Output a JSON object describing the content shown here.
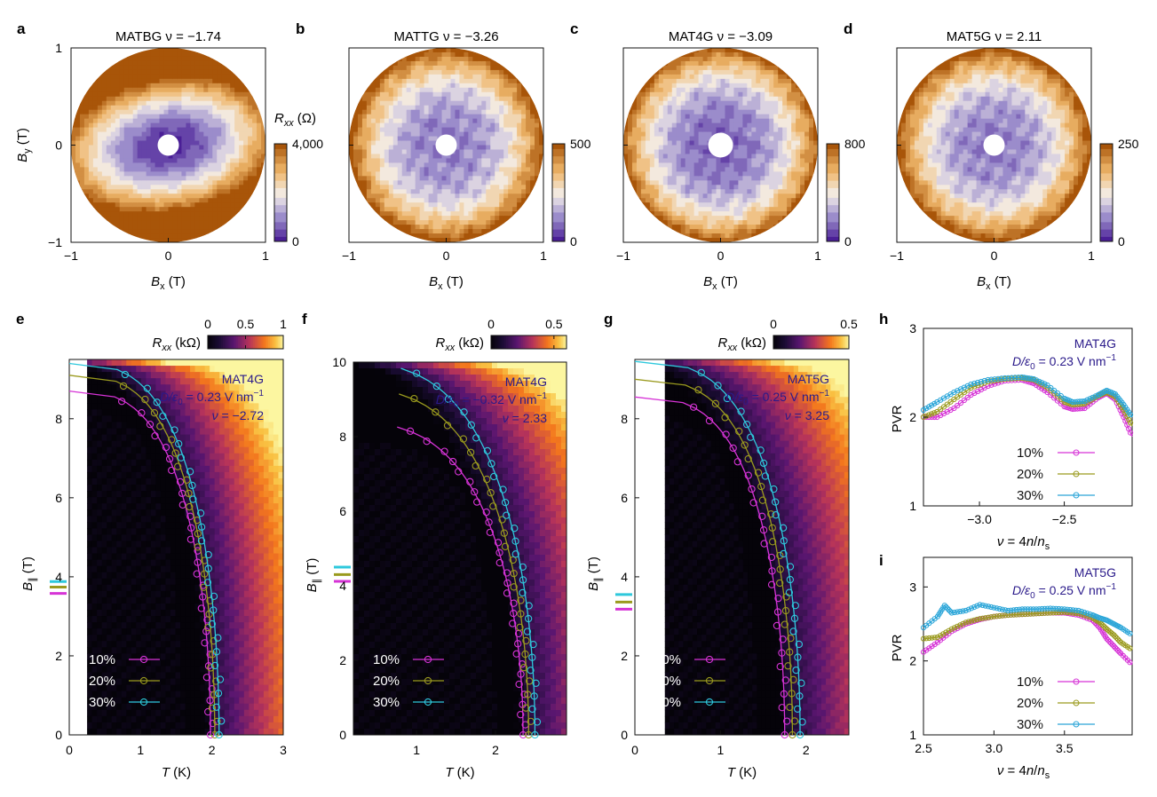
{
  "chart_data": [
    {
      "panel": "a",
      "type": "heatmap",
      "title": "MATBG ν = −1.74",
      "xlabel": "B_x (T)",
      "ylabel": "B_y (T)",
      "xlim": [
        -1,
        1
      ],
      "ylim": [
        -1,
        1
      ],
      "xticks": [
        "−1",
        "0",
        "1"
      ],
      "yticks": [
        "−1",
        "0",
        "1"
      ],
      "colorbar": {
        "label": "R_xx (Ω)",
        "min": 0,
        "max": 4000,
        "tick_labels": [
          "0",
          "4,000"
        ]
      },
      "pattern": "anisotropic",
      "colors": {
        "low": "#4a1f96",
        "mid": "#f3eee9",
        "high": "#b05d0e"
      }
    },
    {
      "panel": "b",
      "type": "heatmap",
      "title": "MATTG ν = −3.26",
      "xlabel": "B_x (T)",
      "ylabel": "",
      "xlim": [
        -1,
        1
      ],
      "ylim": [
        -1,
        1
      ],
      "xticks": [
        "−1",
        "0",
        "1"
      ],
      "yticks": [],
      "colorbar": {
        "label": "",
        "min": 0,
        "max": 500,
        "tick_labels": [
          "0",
          "500"
        ]
      },
      "pattern": "radial"
    },
    {
      "panel": "c",
      "type": "heatmap",
      "title": "MAT4G ν = −3.09",
      "xlabel": "B_x (T)",
      "ylabel": "",
      "xlim": [
        -1,
        1
      ],
      "ylim": [
        -1,
        1
      ],
      "xticks": [
        "−1",
        "0",
        "1"
      ],
      "yticks": [],
      "colorbar": {
        "label": "",
        "min": 0,
        "max": 800,
        "tick_labels": [
          "0",
          "800"
        ]
      },
      "pattern": "radial"
    },
    {
      "panel": "d",
      "type": "heatmap",
      "title": "MAT5G ν = 2.11",
      "xlabel": "B_x (T)",
      "ylabel": "",
      "xlim": [
        -1,
        1
      ],
      "ylim": [
        -1,
        1
      ],
      "xticks": [
        "−1",
        "0",
        "1"
      ],
      "yticks": [],
      "colorbar": {
        "label": "",
        "min": 0,
        "max": 250,
        "tick_labels": [
          "0",
          "250"
        ]
      },
      "pattern": "radial"
    },
    {
      "panel": "e",
      "type": "heatmap",
      "xlabel": "T (K)",
      "ylabel": "B_∥ (T)",
      "xlim": [
        0,
        3
      ],
      "ylim": [
        0,
        9.5
      ],
      "xticks": [
        0,
        1,
        2,
        3
      ],
      "yticks": [
        0,
        2,
        4,
        6,
        8
      ],
      "colorbar": {
        "label": "R_xx (kΩ)",
        "min": 0,
        "max": 1,
        "ticks": [
          "0",
          "0.5",
          "1"
        ]
      },
      "annotation": [
        "MAT4G",
        "D/ε0 = 0.23 V nm⁻¹",
        "ν = −2.72"
      ],
      "data_start_T": 0.25,
      "series": [
        {
          "name": "10%",
          "color": "#d633d6",
          "T0": 1.98,
          "B0": 8.7,
          "markers": [
            2.48,
            2.52,
            2.59,
            2.67,
            2.77,
            2.92,
            3.09,
            3.24,
            3.44,
            3.64,
            3.87,
            4.11,
            4.37,
            4.65,
            4.92,
            5.18,
            5.45,
            5.71,
            5.99,
            6.24,
            6.47,
            6.73,
            6.96,
            7.21,
            7.47,
            7.72,
            7.95,
            8.14,
            8.3,
            8.44
          ]
        },
        {
          "name": "20%",
          "color": "#9a9a1e",
          "T0": 2.04,
          "B0": 9.1,
          "markers": [
            2.32,
            2.49,
            2.66,
            2.85,
            3.06,
            3.3,
            3.52,
            3.77,
            4.02,
            4.29,
            4.57,
            4.83,
            5.09,
            5.36,
            5.61,
            5.88,
            6.15,
            6.41,
            6.65,
            6.91,
            7.15,
            7.4,
            7.67,
            7.91,
            8.14,
            8.35,
            8.55
          ]
        },
        {
          "name": "30%",
          "color": "#2ec8dc",
          "T0": 2.1,
          "B0": 9.4,
          "markers": [
            2.4,
            2.57,
            2.76,
            2.97,
            3.2,
            3.42,
            3.66,
            3.92,
            4.19,
            4.46,
            4.73,
            5.0,
            5.26,
            5.54,
            5.79,
            6.04,
            6.31,
            6.56,
            6.8,
            7.06,
            7.31,
            7.57,
            7.82,
            8.05,
            8.27,
            8.49,
            8.69
          ]
        }
      ],
      "pauli_limits": [
        {
          "name": "10%",
          "value": 3.58
        },
        {
          "name": "20%",
          "value": 3.74
        },
        {
          "name": "30%",
          "value": 3.88
        }
      ],
      "legend": {
        "position": "bottom-left",
        "entries": [
          "10%",
          "20%",
          "30%"
        ]
      }
    },
    {
      "panel": "f",
      "type": "heatmap",
      "xlabel": "T (K)",
      "ylabel": "B_∥ (T)",
      "xlim": [
        0.2,
        2.9
      ],
      "ylim": [
        0,
        10
      ],
      "xticks": [
        1,
        2
      ],
      "yticks": [
        0,
        2,
        4,
        6,
        8,
        10
      ],
      "colorbar": {
        "label": "R_xx (kΩ)",
        "min": 0,
        "max": 0.6,
        "ticks": [
          "0",
          "0.5"
        ]
      },
      "annotation": [
        "MAT4G",
        "D/ε0 = −0.32 V nm⁻¹",
        "ν = 2.33"
      ],
      "data_start_T": 0.2,
      "series": [
        {
          "name": "10%",
          "color": "#d633d6",
          "T0": 2.35,
          "B0": 8.4,
          "markers": [
            2.61,
            2.76,
            2.91,
            3.09,
            3.28,
            3.47,
            3.65,
            3.86,
            4.05,
            4.25,
            4.46,
            4.65,
            4.87,
            5.06,
            5.27,
            5.47,
            5.67,
            5.87,
            6.0,
            6.1,
            6.25,
            6.4,
            6.55,
            6.65,
            6.75,
            6.82,
            7.0,
            7.4,
            7.9,
            8.3,
            8.6
          ]
        },
        {
          "name": "20%",
          "color": "#9a9a1e",
          "T0": 2.42,
          "B0": 9.3,
          "markers": [
            2.36,
            2.59,
            2.82,
            3.07,
            3.33,
            3.58,
            3.83,
            4.09,
            4.36,
            4.62,
            4.87,
            5.14,
            5.39,
            5.63,
            5.9,
            6.15,
            6.41,
            6.67,
            6.92,
            7.18,
            7.44,
            7.69,
            7.93,
            8.15,
            8.35,
            8.52
          ]
        },
        {
          "name": "30%",
          "color": "#2ec8dc",
          "T0": 2.5,
          "B0": 10.0,
          "markers": [
            2.41,
            2.66,
            2.91,
            3.17,
            3.43,
            3.69,
            3.96,
            4.23,
            4.49,
            4.76,
            5.02,
            5.29,
            5.56,
            5.83,
            6.1,
            6.36,
            6.63,
            6.9,
            7.17,
            7.44,
            7.71,
            7.98,
            8.25,
            8.52,
            8.8,
            9.05,
            9.3,
            9.55,
            9.75
          ]
        }
      ],
      "pauli_limits": [
        {
          "name": "10%",
          "value": 4.12
        },
        {
          "name": "20%",
          "value": 4.3
        },
        {
          "name": "30%",
          "value": 4.5
        }
      ],
      "legend": {
        "position": "bottom-left",
        "entries": [
          "10%",
          "20%",
          "30%"
        ]
      }
    },
    {
      "panel": "g",
      "type": "heatmap",
      "xlabel": "T (K)",
      "ylabel": "B_∥ (T)",
      "xlim": [
        0,
        2.5
      ],
      "ylim": [
        0,
        9.5
      ],
      "xticks": [
        0,
        1,
        2
      ],
      "yticks": [
        0,
        2,
        4,
        6,
        8
      ],
      "colorbar": {
        "label": "R_xx (kΩ)",
        "min": 0,
        "max": 0.5,
        "ticks": [
          "0",
          "0.5"
        ]
      },
      "annotation": [
        "MAT5G",
        "D/ε0 = 0.25 V nm⁻¹",
        "ν = 3.25"
      ],
      "data_start_T": 0.35,
      "series": [
        {
          "name": "10%",
          "color": "#d633d6",
          "T0": 1.75,
          "B0": 8.55,
          "markers": [
            2.06,
            2.21,
            2.41,
            2.61,
            2.84,
            3.06,
            3.3,
            3.55,
            3.81,
            4.06,
            4.33,
            4.6,
            4.85,
            5.12,
            5.39,
            5.62,
            5.84,
            6.09,
            6.32,
            6.56,
            6.8,
            7.03,
            7.28,
            7.52,
            7.76
          ]
        },
        {
          "name": "20%",
          "color": "#9a9a1e",
          "T0": 1.84,
          "B0": 9.0,
          "markers": [
            2.0,
            2.19,
            2.41,
            2.65,
            2.89,
            3.15,
            3.41,
            3.66,
            3.93,
            4.19,
            4.45,
            4.72,
            4.98,
            5.24,
            5.5,
            5.76,
            6.01,
            6.26,
            6.5,
            6.74,
            6.98,
            7.22,
            7.47,
            7.71,
            7.95,
            8.17
          ]
        },
        {
          "name": "30%",
          "color": "#2ec8dc",
          "T0": 1.93,
          "B0": 9.45,
          "markers": [
            2.01,
            2.22,
            2.45,
            2.7,
            2.96,
            3.23,
            3.49,
            3.75,
            4.02,
            4.28,
            4.55,
            4.82,
            5.08,
            5.35,
            5.61,
            5.87,
            6.12,
            6.38,
            6.63,
            6.88,
            7.13,
            7.37,
            7.63,
            7.88,
            8.12,
            8.35,
            8.57,
            8.77,
            8.95
          ]
        }
      ],
      "pauli_limits": [
        {
          "name": "10%",
          "value": 3.18
        },
        {
          "name": "20%",
          "value": 3.36
        },
        {
          "name": "30%",
          "value": 3.55
        }
      ],
      "legend": {
        "position": "bottom-left",
        "entries": [
          "10%",
          "20%",
          "30%"
        ]
      }
    },
    {
      "panel": "h",
      "type": "line",
      "xlabel": "ν = 4n/n_s",
      "ylabel": "PVR",
      "xlim": [
        -3.33,
        -2.1
      ],
      "ylim": [
        1,
        3
      ],
      "xticks": [
        "−3.0",
        "−2.5"
      ],
      "yticks": [
        "1",
        "2",
        "3"
      ],
      "annotation": [
        "MAT4G",
        "D/ε0 = 0.23 V nm⁻¹"
      ],
      "series": [
        {
          "name": "10%",
          "color": "#d633d6",
          "x": [
            -3.33,
            -3.25,
            -3.15,
            -3.05,
            -2.95,
            -2.85,
            -2.75,
            -2.68,
            -2.6,
            -2.5,
            -2.45,
            -2.38,
            -2.3,
            -2.25,
            -2.2,
            -2.15,
            -2.1
          ],
          "y": [
            2.0,
            2.0,
            2.1,
            2.25,
            2.35,
            2.41,
            2.42,
            2.38,
            2.28,
            2.12,
            2.09,
            2.1,
            2.22,
            2.27,
            2.2,
            2.0,
            1.78
          ]
        },
        {
          "name": "20%",
          "color": "#9a9a1e",
          "x": [
            -3.33,
            -3.25,
            -3.15,
            -3.05,
            -2.95,
            -2.85,
            -2.75,
            -2.68,
            -2.6,
            -2.5,
            -2.45,
            -2.38,
            -2.3,
            -2.25,
            -2.2,
            -2.15,
            -2.1
          ],
          "y": [
            2.0,
            2.06,
            2.2,
            2.33,
            2.4,
            2.43,
            2.44,
            2.42,
            2.33,
            2.17,
            2.14,
            2.15,
            2.24,
            2.28,
            2.23,
            2.08,
            1.9
          ]
        },
        {
          "name": "30%",
          "color": "#2aa5d8",
          "x": [
            -3.33,
            -3.25,
            -3.15,
            -3.05,
            -2.95,
            -2.85,
            -2.75,
            -2.68,
            -2.6,
            -2.5,
            -2.45,
            -2.38,
            -2.3,
            -2.25,
            -2.2,
            -2.15,
            -2.1
          ],
          "y": [
            2.08,
            2.17,
            2.28,
            2.37,
            2.42,
            2.44,
            2.45,
            2.43,
            2.36,
            2.21,
            2.17,
            2.18,
            2.25,
            2.3,
            2.26,
            2.14,
            2.0
          ]
        }
      ],
      "legend": {
        "position": "bottom-right",
        "entries": [
          "10%",
          "20%",
          "30%"
        ]
      }
    },
    {
      "panel": "i",
      "type": "line",
      "xlabel": "ν = 4n/n_s",
      "ylabel": "PVR",
      "xlim": [
        2.5,
        3.98
      ],
      "ylim": [
        1,
        3.4
      ],
      "xticks": [
        "2.5",
        "3.0",
        "3.5"
      ],
      "yticks": [
        "1",
        "2",
        "3"
      ],
      "annotation": [
        "MAT5G",
        "D/ε0 = 0.25 V nm⁻¹"
      ],
      "series": [
        {
          "name": "10%",
          "color": "#d633d6",
          "x": [
            2.5,
            2.6,
            2.7,
            2.8,
            2.9,
            3.0,
            3.1,
            3.2,
            3.3,
            3.4,
            3.5,
            3.6,
            3.7,
            3.75,
            3.8,
            3.85,
            3.9,
            3.98
          ],
          "y": [
            2.12,
            2.25,
            2.4,
            2.5,
            2.56,
            2.6,
            2.62,
            2.63,
            2.64,
            2.65,
            2.65,
            2.62,
            2.55,
            2.45,
            2.3,
            2.2,
            2.1,
            1.95
          ]
        },
        {
          "name": "20%",
          "color": "#9a9a1e",
          "x": [
            2.5,
            2.6,
            2.7,
            2.8,
            2.9,
            3.0,
            3.1,
            3.2,
            3.3,
            3.4,
            3.5,
            3.6,
            3.7,
            3.75,
            3.8,
            3.85,
            3.9,
            3.98
          ],
          "y": [
            2.3,
            2.32,
            2.43,
            2.52,
            2.57,
            2.6,
            2.62,
            2.63,
            2.64,
            2.65,
            2.66,
            2.64,
            2.58,
            2.52,
            2.43,
            2.35,
            2.25,
            2.15
          ]
        },
        {
          "name": "30%",
          "color": "#2aa5d8",
          "x": [
            2.5,
            2.6,
            2.65,
            2.7,
            2.8,
            2.9,
            3.0,
            3.1,
            3.2,
            3.3,
            3.4,
            3.5,
            3.6,
            3.7,
            3.75,
            3.8,
            3.85,
            3.9,
            3.98
          ],
          "y": [
            2.45,
            2.6,
            2.75,
            2.65,
            2.68,
            2.76,
            2.72,
            2.68,
            2.7,
            2.7,
            2.71,
            2.7,
            2.68,
            2.62,
            2.58,
            2.55,
            2.5,
            2.45,
            2.35
          ]
        }
      ],
      "legend": {
        "position": "bottom-right",
        "entries": [
          "10%",
          "20%",
          "30%"
        ]
      }
    }
  ]
}
